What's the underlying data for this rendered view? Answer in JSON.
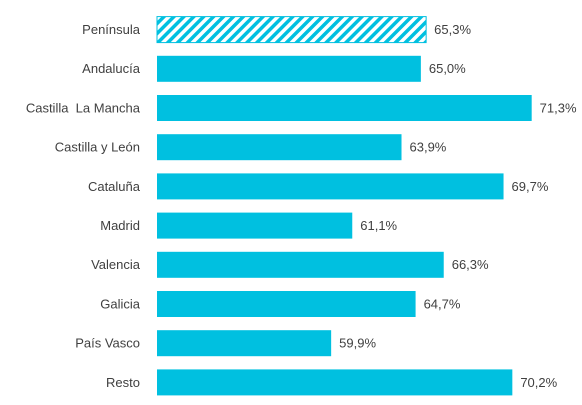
{
  "chart_data": {
    "type": "barh",
    "categories": [
      "Península",
      "Andalucía",
      "Castilla  La Mancha",
      "Castilla y León",
      "Cataluña",
      "Madrid",
      "Valencia",
      "Galicia",
      "País Vasco",
      "Resto"
    ],
    "values": [
      65.3,
      65.0,
      71.3,
      63.9,
      69.7,
      61.1,
      66.3,
      64.7,
      59.9,
      70.2
    ],
    "value_labels": [
      "65,3%",
      "65,0%",
      "71,3%",
      "63,9%",
      "69,7%",
      "61,1%",
      "66,3%",
      "64,7%",
      "59,9%",
      "70,2%"
    ],
    "color": "#00c0e0",
    "hatched": [
      0
    ],
    "xlim": [
      50,
      72
    ]
  }
}
